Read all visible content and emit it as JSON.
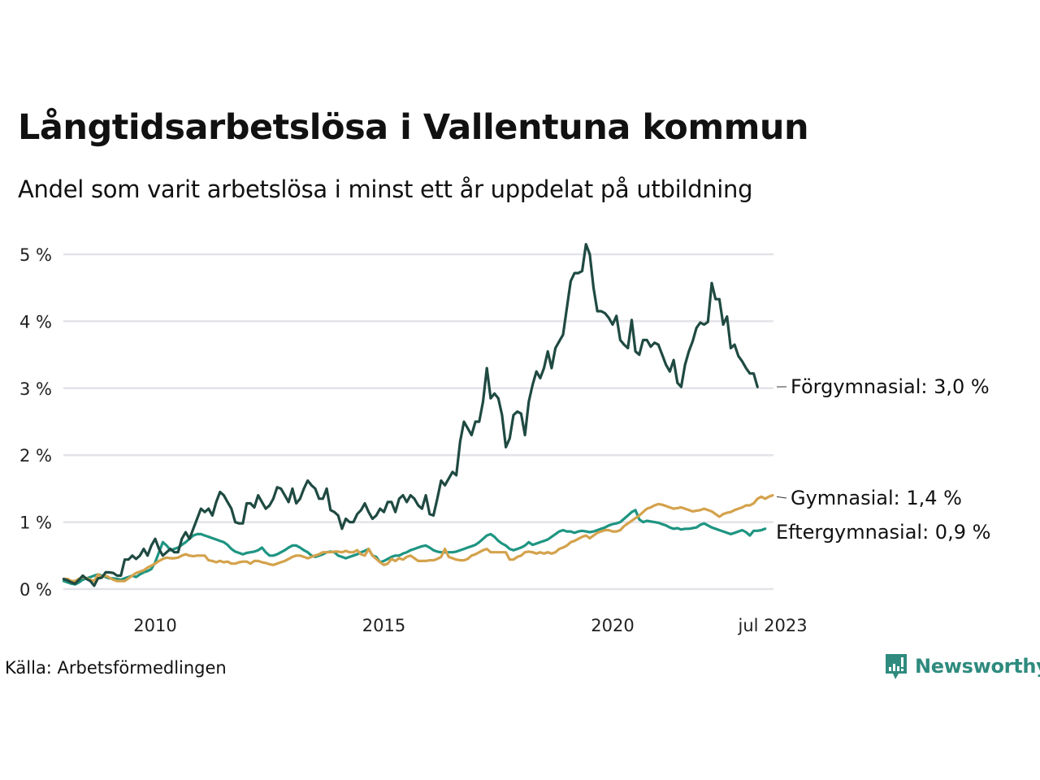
{
  "header": {
    "title": "Långtidsarbetslösa i Vallentuna kommun",
    "subtitle": "Andel som varit arbetslösa i minst ett år uppdelat på utbildning"
  },
  "footer": {
    "source": "Källa: Arbetsförmedlingen",
    "brand": "Newsworthy",
    "brand_icon": "bar-chart-speech-bubble-icon",
    "brand_color": "#2e8b7e"
  },
  "chart_data": {
    "type": "line",
    "title": "Långtidsarbetslösa i Vallentuna kommun",
    "subtitle": "Andel som varit arbetslösa i minst ett år uppdelat på utbildning",
    "xlabel": "",
    "ylabel": "",
    "x_start": "2008-01",
    "x_end": "2023-07",
    "x_unit": "month",
    "ylim": [
      0,
      5
    ],
    "y_ticks": [
      0,
      1,
      2,
      3,
      4,
      5
    ],
    "y_tick_labels": [
      "0 %",
      "1 %",
      "2 %",
      "3 %",
      "4 %",
      "5 %"
    ],
    "x_ticks": [
      2010,
      2015,
      2020,
      2023.5
    ],
    "x_tick_labels": [
      "2010",
      "2015",
      "2020",
      "jul 2023"
    ],
    "grid": true,
    "legend": "end-labels-right",
    "series": [
      {
        "name": "Förgymnasial",
        "end_label": "Förgymnasial: 3,0 %",
        "color": "#1f4a42",
        "values": [
          0.15,
          0.13,
          0.1,
          0.08,
          0.14,
          0.2,
          0.15,
          0.12,
          0.05,
          0.16,
          0.17,
          0.25,
          0.25,
          0.24,
          0.2,
          0.2,
          0.44,
          0.44,
          0.5,
          0.45,
          0.5,
          0.6,
          0.5,
          0.65,
          0.75,
          0.6,
          0.5,
          0.55,
          0.6,
          0.55,
          0.55,
          0.75,
          0.85,
          0.75,
          0.9,
          1.05,
          1.2,
          1.15,
          1.2,
          1.1,
          1.3,
          1.45,
          1.4,
          1.3,
          1.2,
          1.0,
          0.98,
          0.98,
          1.28,
          1.28,
          1.22,
          1.4,
          1.3,
          1.2,
          1.25,
          1.35,
          1.52,
          1.5,
          1.4,
          1.3,
          1.5,
          1.28,
          1.35,
          1.5,
          1.62,
          1.55,
          1.5,
          1.35,
          1.35,
          1.5,
          1.18,
          1.15,
          1.1,
          0.9,
          1.05,
          1.0,
          1.0,
          1.12,
          1.18,
          1.28,
          1.15,
          1.05,
          1.1,
          1.2,
          1.15,
          1.3,
          1.3,
          1.15,
          1.35,
          1.4,
          1.3,
          1.4,
          1.35,
          1.25,
          1.2,
          1.4,
          1.12,
          1.1,
          1.35,
          1.62,
          1.55,
          1.65,
          1.75,
          1.7,
          2.2,
          2.5,
          2.4,
          2.3,
          2.5,
          2.5,
          2.8,
          3.3,
          2.85,
          2.92,
          2.85,
          2.6,
          2.12,
          2.25,
          2.6,
          2.65,
          2.62,
          2.3,
          2.8,
          3.05,
          3.25,
          3.15,
          3.3,
          3.55,
          3.3,
          3.6,
          3.7,
          3.8,
          4.2,
          4.6,
          4.72,
          4.72,
          4.75,
          5.15,
          5.0,
          4.5,
          4.15,
          4.15,
          4.12,
          4.05,
          3.95,
          4.08,
          3.72,
          3.65,
          3.6,
          4.02,
          3.55,
          3.5,
          3.72,
          3.72,
          3.62,
          3.68,
          3.65,
          3.5,
          3.35,
          3.25,
          3.42,
          3.08,
          3.02,
          3.35,
          3.55,
          3.7,
          3.9,
          3.98,
          3.95,
          3.99,
          4.57,
          4.33,
          4.33,
          3.95,
          4.07,
          3.6,
          3.65,
          3.48,
          3.4,
          3.3,
          3.22,
          3.22,
          3.02
        ]
      },
      {
        "name": "Gymnasial",
        "end_label": "Gymnasial: 1,4 %",
        "color": "#d4a24c",
        "values": [
          0.15,
          0.15,
          0.12,
          0.12,
          0.15,
          0.18,
          0.16,
          0.14,
          0.12,
          0.22,
          0.18,
          0.2,
          0.17,
          0.14,
          0.12,
          0.12,
          0.12,
          0.16,
          0.2,
          0.24,
          0.26,
          0.28,
          0.32,
          0.35,
          0.38,
          0.42,
          0.45,
          0.47,
          0.46,
          0.46,
          0.47,
          0.5,
          0.52,
          0.5,
          0.49,
          0.5,
          0.5,
          0.5,
          0.43,
          0.42,
          0.4,
          0.42,
          0.4,
          0.41,
          0.38,
          0.38,
          0.4,
          0.41,
          0.41,
          0.38,
          0.42,
          0.42,
          0.4,
          0.39,
          0.37,
          0.36,
          0.38,
          0.4,
          0.42,
          0.45,
          0.48,
          0.5,
          0.5,
          0.48,
          0.46,
          0.48,
          0.5,
          0.52,
          0.55,
          0.55,
          0.55,
          0.56,
          0.56,
          0.55,
          0.57,
          0.55,
          0.55,
          0.58,
          0.52,
          0.5,
          0.6,
          0.5,
          0.45,
          0.4,
          0.36,
          0.38,
          0.45,
          0.42,
          0.46,
          0.44,
          0.48,
          0.5,
          0.46,
          0.42,
          0.42,
          0.42,
          0.43,
          0.43,
          0.45,
          0.48,
          0.6,
          0.48,
          0.46,
          0.44,
          0.43,
          0.43,
          0.45,
          0.5,
          0.52,
          0.55,
          0.58,
          0.6,
          0.55,
          0.55,
          0.55,
          0.55,
          0.55,
          0.44,
          0.44,
          0.48,
          0.5,
          0.55,
          0.56,
          0.55,
          0.53,
          0.55,
          0.53,
          0.55,
          0.53,
          0.55,
          0.6,
          0.62,
          0.65,
          0.7,
          0.72,
          0.75,
          0.78,
          0.8,
          0.76,
          0.8,
          0.84,
          0.86,
          0.88,
          0.88,
          0.86,
          0.86,
          0.88,
          0.94,
          0.98,
          1.02,
          1.06,
          1.1,
          1.15,
          1.2,
          1.22,
          1.25,
          1.27,
          1.26,
          1.24,
          1.22,
          1.2,
          1.21,
          1.22,
          1.2,
          1.18,
          1.16,
          1.17,
          1.18,
          1.2,
          1.18,
          1.16,
          1.12,
          1.08,
          1.12,
          1.14,
          1.15,
          1.18,
          1.2,
          1.22,
          1.25,
          1.25,
          1.28,
          1.35,
          1.38,
          1.35,
          1.38,
          1.4
        ]
      },
      {
        "name": "Eftergymnasial",
        "end_label": "Eftergymnasial: 0,9 %",
        "color": "#1e9582",
        "values": [
          0.12,
          0.1,
          0.08,
          0.07,
          0.1,
          0.14,
          0.16,
          0.18,
          0.2,
          0.22,
          0.2,
          0.18,
          0.16,
          0.16,
          0.15,
          0.14,
          0.16,
          0.18,
          0.2,
          0.18,
          0.22,
          0.25,
          0.27,
          0.3,
          0.4,
          0.55,
          0.7,
          0.65,
          0.58,
          0.6,
          0.62,
          0.66,
          0.7,
          0.75,
          0.8,
          0.82,
          0.82,
          0.8,
          0.78,
          0.76,
          0.74,
          0.72,
          0.7,
          0.66,
          0.6,
          0.56,
          0.54,
          0.52,
          0.54,
          0.55,
          0.56,
          0.58,
          0.62,
          0.55,
          0.5,
          0.5,
          0.52,
          0.55,
          0.58,
          0.62,
          0.65,
          0.65,
          0.62,
          0.58,
          0.55,
          0.5,
          0.48,
          0.5,
          0.52,
          0.55,
          0.56,
          0.55,
          0.5,
          0.48,
          0.46,
          0.48,
          0.5,
          0.52,
          0.55,
          0.57,
          0.6,
          0.5,
          0.48,
          0.4,
          0.42,
          0.45,
          0.48,
          0.5,
          0.5,
          0.53,
          0.55,
          0.58,
          0.6,
          0.62,
          0.64,
          0.65,
          0.62,
          0.58,
          0.56,
          0.55,
          0.55,
          0.55,
          0.55,
          0.56,
          0.58,
          0.6,
          0.62,
          0.64,
          0.66,
          0.7,
          0.75,
          0.8,
          0.82,
          0.78,
          0.72,
          0.68,
          0.65,
          0.6,
          0.58,
          0.6,
          0.62,
          0.65,
          0.7,
          0.66,
          0.68,
          0.7,
          0.72,
          0.74,
          0.78,
          0.82,
          0.86,
          0.88,
          0.86,
          0.86,
          0.84,
          0.86,
          0.87,
          0.86,
          0.85,
          0.86,
          0.88,
          0.9,
          0.92,
          0.95,
          0.97,
          0.98,
          1.0,
          1.05,
          1.1,
          1.15,
          1.18,
          1.04,
          1.0,
          1.02,
          1.01,
          1.0,
          0.99,
          0.97,
          0.95,
          0.92,
          0.9,
          0.91,
          0.89,
          0.9,
          0.9,
          0.91,
          0.92,
          0.96,
          0.98,
          0.95,
          0.92,
          0.9,
          0.88,
          0.86,
          0.84,
          0.82,
          0.84,
          0.86,
          0.88,
          0.85,
          0.8,
          0.87,
          0.87,
          0.88,
          0.9
        ]
      }
    ]
  }
}
